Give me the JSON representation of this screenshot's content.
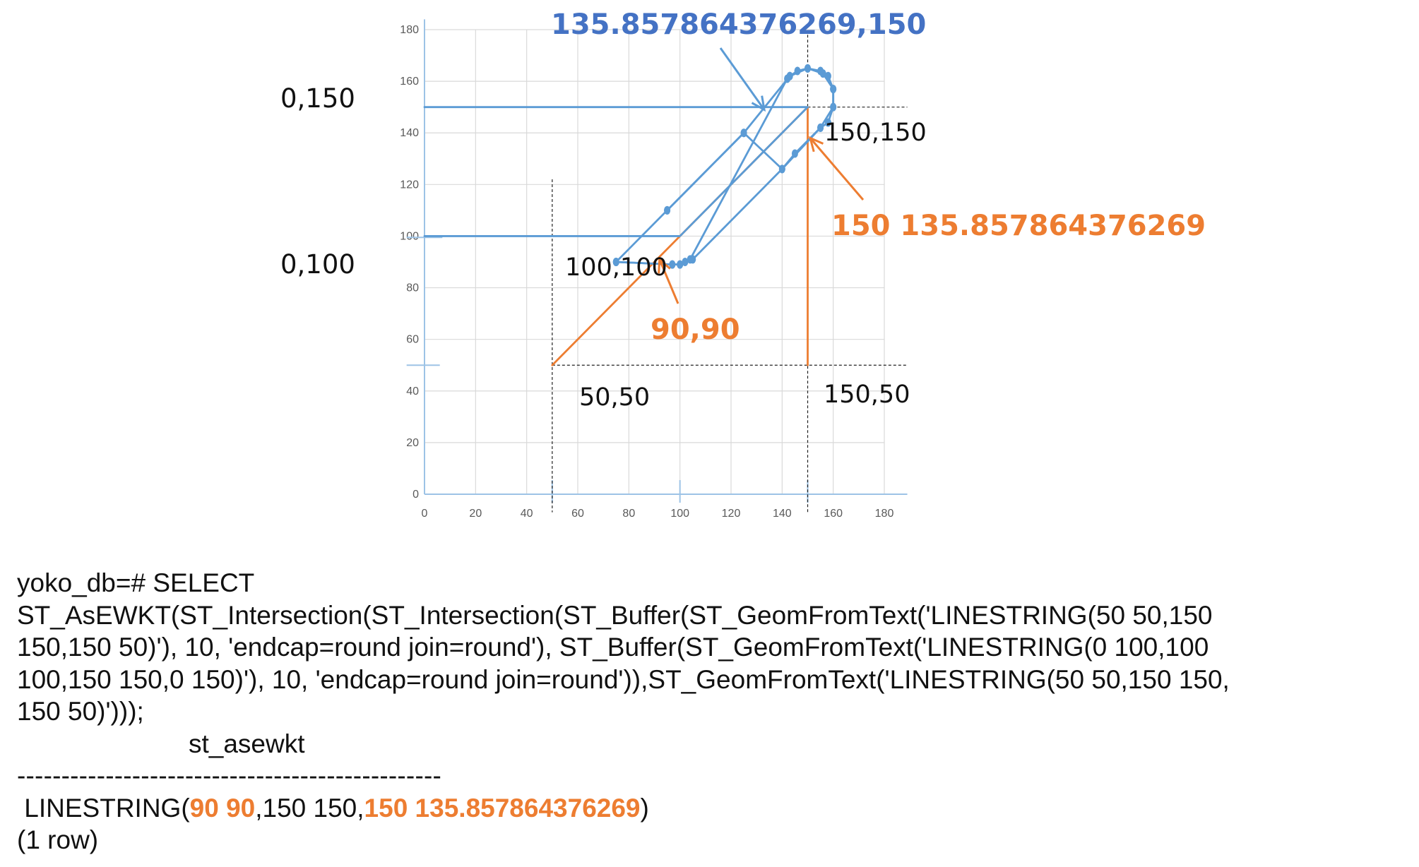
{
  "colors": {
    "blue": "#5B9BD5",
    "blue_text": "#4472C4",
    "orange": "#ED7D31",
    "grid": "#d9d9d9",
    "axis_text": "#595959"
  },
  "chart_data": {
    "type": "scatter",
    "xlim": [
      0,
      180
    ],
    "ylim": [
      0,
      180
    ],
    "x_ticks": [
      "0",
      "20",
      "40",
      "60",
      "80",
      "100",
      "120",
      "140",
      "160",
      "180"
    ],
    "y_ticks": [
      "0",
      "20",
      "40",
      "60",
      "80",
      "100",
      "120",
      "140",
      "160",
      "180"
    ],
    "grid": true,
    "series": [
      {
        "color": "#ED7D31",
        "points": [
          [
            50,
            50
          ],
          [
            150,
            150
          ],
          [
            150,
            50
          ]
        ]
      },
      {
        "color": "#5B9BD5",
        "points": [
          [
            0,
            100
          ],
          [
            100,
            100
          ],
          [
            150,
            150
          ],
          [
            0,
            150
          ]
        ]
      },
      {
        "color": "#5B9BD5",
        "points": [
          [
            75,
            90
          ],
          [
            95,
            110
          ],
          [
            125,
            140
          ],
          [
            143,
            162
          ],
          [
            150,
            165
          ],
          [
            156,
            163
          ],
          [
            160,
            157
          ],
          [
            160,
            150
          ],
          [
            158,
            144
          ],
          [
            155,
            142
          ],
          [
            145,
            132
          ],
          [
            140,
            126
          ],
          [
            105,
            91
          ],
          [
            100,
            89
          ],
          [
            97,
            89
          ],
          [
            75,
            90
          ]
        ]
      },
      {
        "color": "#5B9BD5",
        "points": [
          [
            95,
            110
          ],
          [
            125,
            140
          ],
          [
            140,
            126
          ],
          [
            155,
            142
          ],
          [
            160,
            150
          ],
          [
            160,
            157
          ],
          [
            158,
            162
          ],
          [
            155,
            164
          ],
          [
            150,
            165
          ],
          [
            146,
            164
          ],
          [
            143,
            162
          ],
          [
            142,
            161
          ],
          [
            104,
            91
          ],
          [
            102,
            90
          ],
          [
            100,
            89
          ],
          [
            97,
            89
          ],
          [
            75,
            90
          ]
        ]
      }
    ]
  },
  "labels": {
    "blue_point": "135.857864376269,150",
    "left_150": "0,150",
    "left_100": "0,100",
    "pt_150_150": "150,150",
    "orange_point": "150 135.857864376269",
    "pt_100_100": "100,100",
    "orange_90": "90,90",
    "pt_50_50": "50,50",
    "pt_150_50": "150,50"
  },
  "sql": {
    "line1": "yoko_db=# SELECT",
    "line2": "ST_AsEWKT(ST_Intersection(ST_Intersection(ST_Buffer(ST_GeomFromText('LINESTRING(50 50,150",
    "line3": "150,150 50)'), 10, 'endcap=round join=round'), ST_Buffer(ST_GeomFromText('LINESTRING(0 100,100",
    "line4": "100,150 150,0 150)'), 10, 'endcap=round join=round')),ST_GeomFromText('LINESTRING(50 50,150 150,",
    "line5": "150 50)')));",
    "line6": "st_asewkt",
    "line7": "------------------------------------------------",
    "result": {
      "prefix": " LINESTRING(",
      "hl1": "90 90",
      "mid": ",150 150,",
      "hl2": "150 135.857864376269",
      "suffix": ")"
    },
    "line9": "(1 row)"
  }
}
